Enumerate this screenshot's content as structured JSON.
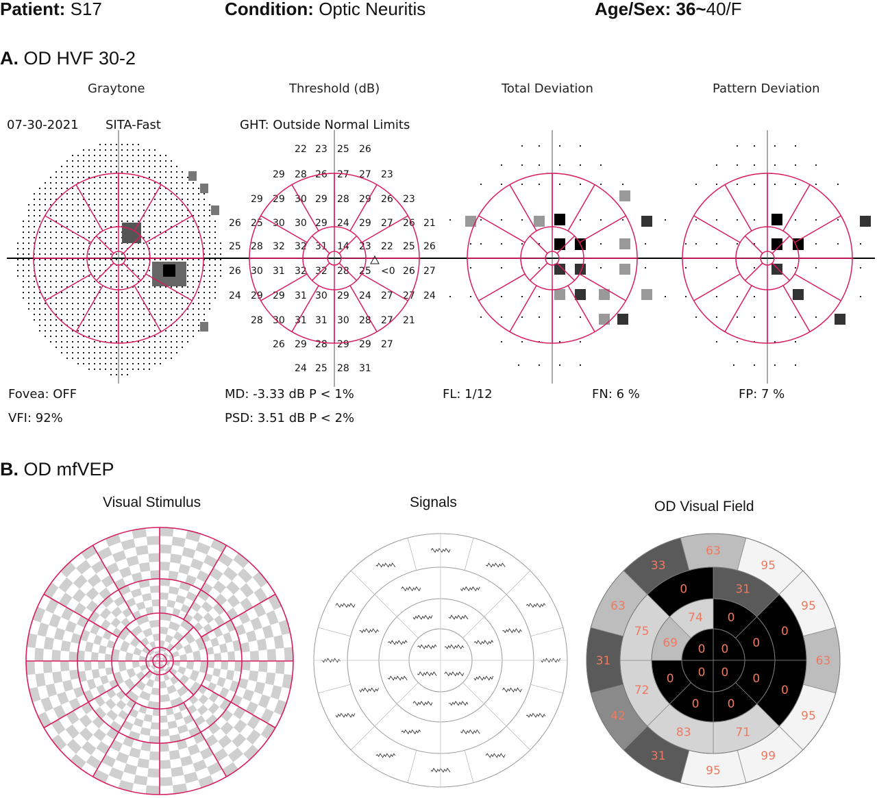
{
  "header": {
    "patient_label": "Patient:",
    "patient_value": "S17",
    "condition_label": "Condition:",
    "condition_value": "Optic Neuritis",
    "age_sex_label": "Age/Sex:",
    "age_sex_value_a": "36~",
    "age_sex_value_b": "40/F"
  },
  "section_a": {
    "letter": "A.",
    "title": "OD HVF 30-2",
    "panel_titles": [
      "Graytone",
      "Threshold (dB)",
      "Total Deviation",
      "Pattern Deviation"
    ],
    "test_date": "07-30-2021",
    "strategy": "SITA-Fast",
    "ght": "GHT: Outside Normal Limits",
    "fovea": "Fovea: OFF",
    "vfi": "VFI:  92%",
    "md": "MD:  -3.33 dB  P < 1%",
    "psd": "PSD:  3.51 dB  P < 2%",
    "fl": "FL: 1/12",
    "fn": "FN:  6 %",
    "fp": "FP:  7 %",
    "threshold_rows": [
      [
        "22",
        "23",
        "25",
        "26"
      ],
      [
        "29",
        "28",
        "26",
        "27",
        "27",
        "23"
      ],
      [
        "29",
        "29",
        "30",
        "29",
        "28",
        "29",
        "26",
        "23"
      ],
      [
        "26",
        "25",
        "30",
        "30",
        "29",
        "24",
        "29",
        "27",
        "26",
        "21"
      ],
      [
        "25",
        "28",
        "32",
        "32",
        "31",
        "14",
        "23",
        "22",
        "25",
        "26"
      ],
      [
        "26",
        "30",
        "31",
        "32",
        "32",
        "28",
        "25",
        "<0",
        "26",
        "27"
      ],
      [
        "24",
        "29",
        "29",
        "31",
        "30",
        "29",
        "24",
        "27",
        "27",
        "24"
      ],
      [
        "28",
        "30",
        "31",
        "31",
        "30",
        "28",
        "27",
        "21"
      ],
      [
        "26",
        "29",
        "28",
        "29",
        "29",
        "27"
      ],
      [
        "24",
        "25",
        "28",
        "31"
      ]
    ]
  },
  "section_b": {
    "letter": "B.",
    "title": "OD mfVEP",
    "panel_titles": [
      "Visual Stimulus",
      "Signals",
      "OD Visual Field"
    ],
    "visual_field_values": [
      "63",
      "63",
      "31",
      "95",
      "0",
      "0",
      "71",
      "95",
      "0",
      "0",
      "31",
      "0",
      "33",
      "74",
      "0",
      "0",
      "0",
      "0",
      "0",
      "0",
      "42",
      "69",
      "83",
      "0",
      "0",
      "0",
      "63",
      "72",
      "31",
      "75",
      "0",
      "31",
      "33",
      "0",
      "95",
      "95",
      "99"
    ]
  },
  "colors": {
    "accent": "#d81b60",
    "vf_text": "#f07860"
  }
}
